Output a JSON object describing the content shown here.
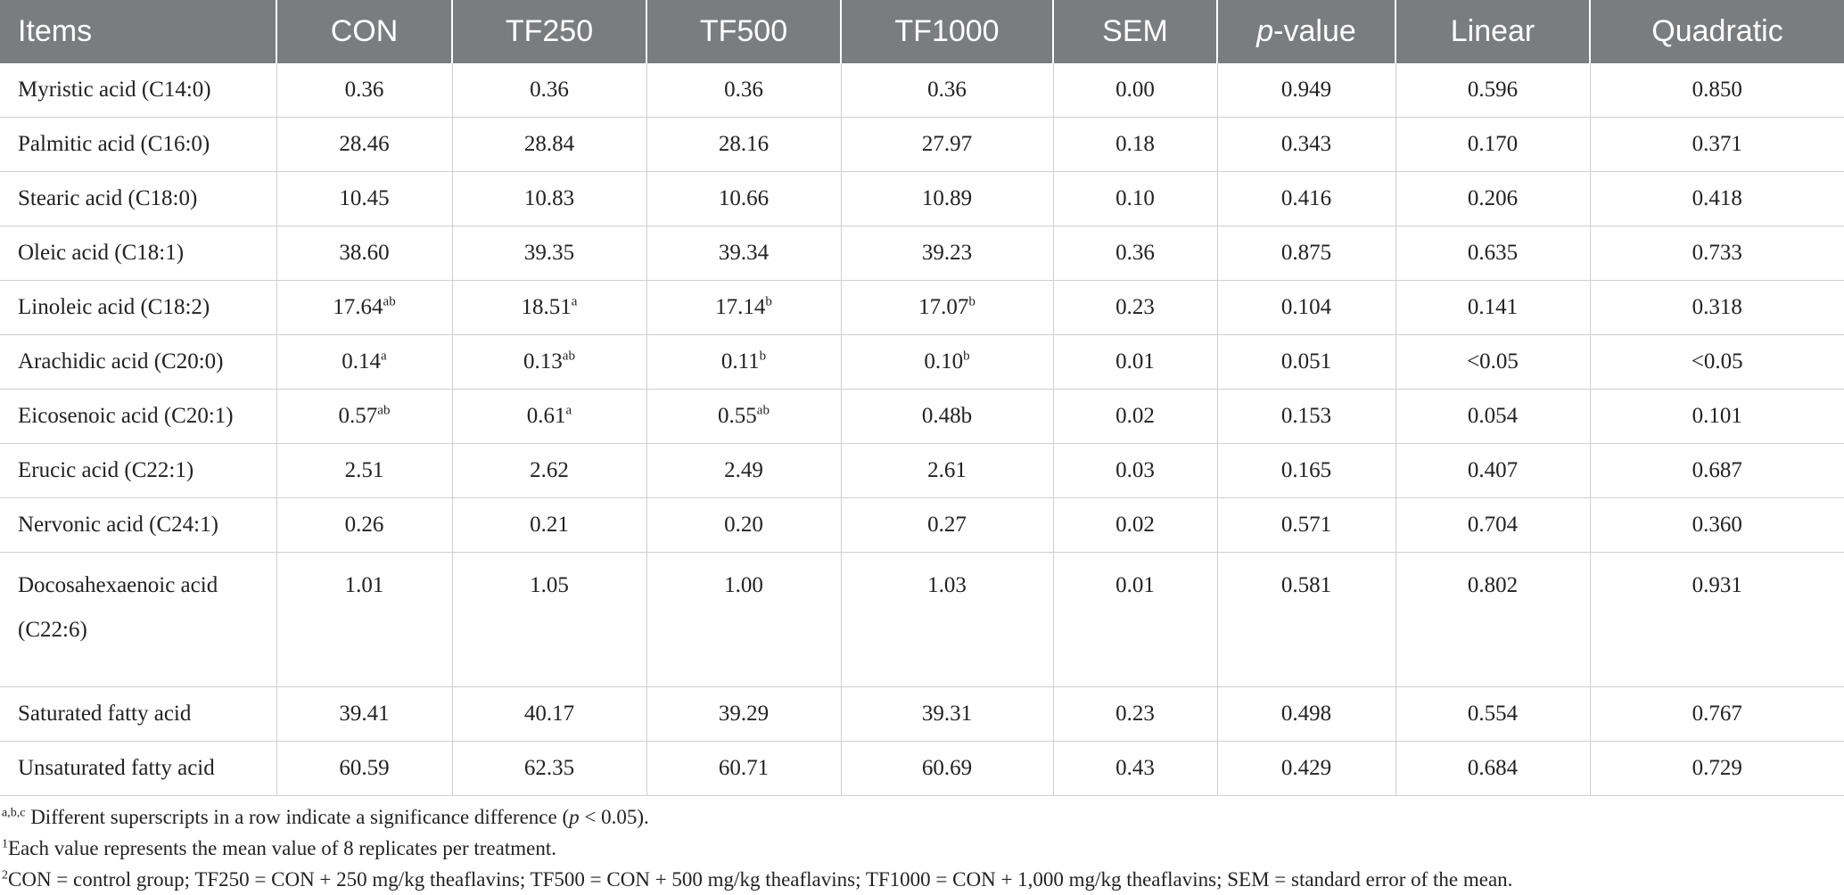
{
  "columns": [
    "Items",
    "CON",
    "TF250",
    "TF500",
    "TF1000",
    "SEM",
    "p",
    "-value",
    "Linear",
    "Quadratic"
  ],
  "rows": [
    {
      "item": "Myristic acid (C14:0)",
      "cells": [
        [
          "0.36",
          ""
        ],
        [
          "0.36",
          ""
        ],
        [
          "0.36",
          ""
        ],
        [
          "0.36",
          ""
        ],
        [
          "0.00",
          ""
        ],
        [
          "0.949",
          ""
        ],
        [
          "0.596",
          ""
        ],
        [
          "0.850",
          ""
        ]
      ]
    },
    {
      "item": "Palmitic acid (C16:0)",
      "cells": [
        [
          "28.46",
          ""
        ],
        [
          "28.84",
          ""
        ],
        [
          "28.16",
          ""
        ],
        [
          "27.97",
          ""
        ],
        [
          "0.18",
          ""
        ],
        [
          "0.343",
          ""
        ],
        [
          "0.170",
          ""
        ],
        [
          "0.371",
          ""
        ]
      ]
    },
    {
      "item": "Stearic acid (C18:0)",
      "cells": [
        [
          "10.45",
          ""
        ],
        [
          "10.83",
          ""
        ],
        [
          "10.66",
          ""
        ],
        [
          "10.89",
          ""
        ],
        [
          "0.10",
          ""
        ],
        [
          "0.416",
          ""
        ],
        [
          "0.206",
          ""
        ],
        [
          "0.418",
          ""
        ]
      ]
    },
    {
      "item": "Oleic acid (C18:1)",
      "cells": [
        [
          "38.60",
          ""
        ],
        [
          "39.35",
          ""
        ],
        [
          "39.34",
          ""
        ],
        [
          "39.23",
          ""
        ],
        [
          "0.36",
          ""
        ],
        [
          "0.875",
          ""
        ],
        [
          "0.635",
          ""
        ],
        [
          "0.733",
          ""
        ]
      ]
    },
    {
      "item": "Linoleic acid (C18:2)",
      "cells": [
        [
          "17.64",
          "ab"
        ],
        [
          "18.51",
          "a"
        ],
        [
          "17.14",
          "b"
        ],
        [
          "17.07",
          "b"
        ],
        [
          "0.23",
          ""
        ],
        [
          "0.104",
          ""
        ],
        [
          "0.141",
          ""
        ],
        [
          "0.318",
          ""
        ]
      ]
    },
    {
      "item": "Arachidic acid (C20:0)",
      "cells": [
        [
          "0.14",
          "a"
        ],
        [
          "0.13",
          "ab"
        ],
        [
          "0.11",
          "b"
        ],
        [
          "0.10",
          "b"
        ],
        [
          "0.01",
          ""
        ],
        [
          "0.051",
          ""
        ],
        [
          "<0.05",
          ""
        ],
        [
          "<0.05",
          ""
        ]
      ]
    },
    {
      "item": "Eicosenoic acid (C20:1)",
      "cells": [
        [
          "0.57",
          "ab"
        ],
        [
          "0.61",
          "a"
        ],
        [
          "0.55",
          "ab"
        ],
        [
          "0.48b",
          ""
        ],
        [
          "0.02",
          ""
        ],
        [
          "0.153",
          ""
        ],
        [
          "0.054",
          ""
        ],
        [
          "0.101",
          ""
        ]
      ]
    },
    {
      "item": "Erucic acid (C22:1)",
      "cells": [
        [
          "2.51",
          ""
        ],
        [
          "2.62",
          ""
        ],
        [
          "2.49",
          ""
        ],
        [
          "2.61",
          ""
        ],
        [
          "0.03",
          ""
        ],
        [
          "0.165",
          ""
        ],
        [
          "0.407",
          ""
        ],
        [
          "0.687",
          ""
        ]
      ]
    },
    {
      "item": "Nervonic acid (C24:1)",
      "cells": [
        [
          "0.26",
          ""
        ],
        [
          "0.21",
          ""
        ],
        [
          "0.20",
          ""
        ],
        [
          "0.27",
          ""
        ],
        [
          "0.02",
          ""
        ],
        [
          "0.571",
          ""
        ],
        [
          "0.704",
          ""
        ],
        [
          "0.360",
          ""
        ]
      ]
    },
    {
      "item": "Docosahexaenoic acid (C22:6)",
      "cells": [
        [
          "1.01",
          ""
        ],
        [
          "1.05",
          ""
        ],
        [
          "1.00",
          ""
        ],
        [
          "1.03",
          ""
        ],
        [
          "0.01",
          ""
        ],
        [
          "0.581",
          ""
        ],
        [
          "0.802",
          ""
        ],
        [
          "0.931",
          ""
        ]
      ]
    },
    {
      "item": "Saturated fatty acid",
      "cells": [
        [
          "39.41",
          ""
        ],
        [
          "40.17",
          ""
        ],
        [
          "39.29",
          ""
        ],
        [
          "39.31",
          ""
        ],
        [
          "0.23",
          ""
        ],
        [
          "0.498",
          ""
        ],
        [
          "0.554",
          ""
        ],
        [
          "0.767",
          ""
        ]
      ]
    },
    {
      "item": "Unsaturated fatty acid",
      "cells": [
        [
          "60.59",
          ""
        ],
        [
          "62.35",
          ""
        ],
        [
          "60.71",
          ""
        ],
        [
          "60.69",
          ""
        ],
        [
          "0.43",
          ""
        ],
        [
          "0.429",
          ""
        ],
        [
          "0.684",
          ""
        ],
        [
          "0.729",
          ""
        ]
      ]
    }
  ],
  "notes": {
    "n1_sup": "a,b,c",
    "n1_a": " Different superscripts in a row indicate a significance difference (",
    "n1_p": "p",
    "n1_b": " < 0.05).",
    "n2_sup": "1",
    "n2": "Each value represents the mean value of 8 replicates per treatment.",
    "n3_sup": "2",
    "n3": "CON = control group; TF250 = CON + 250 mg/kg theaflavins; TF500 = CON + 500 mg/kg theaflavins; TF1000 = CON + 1,000 mg/kg theaflavins; SEM = standard error of the mean."
  }
}
